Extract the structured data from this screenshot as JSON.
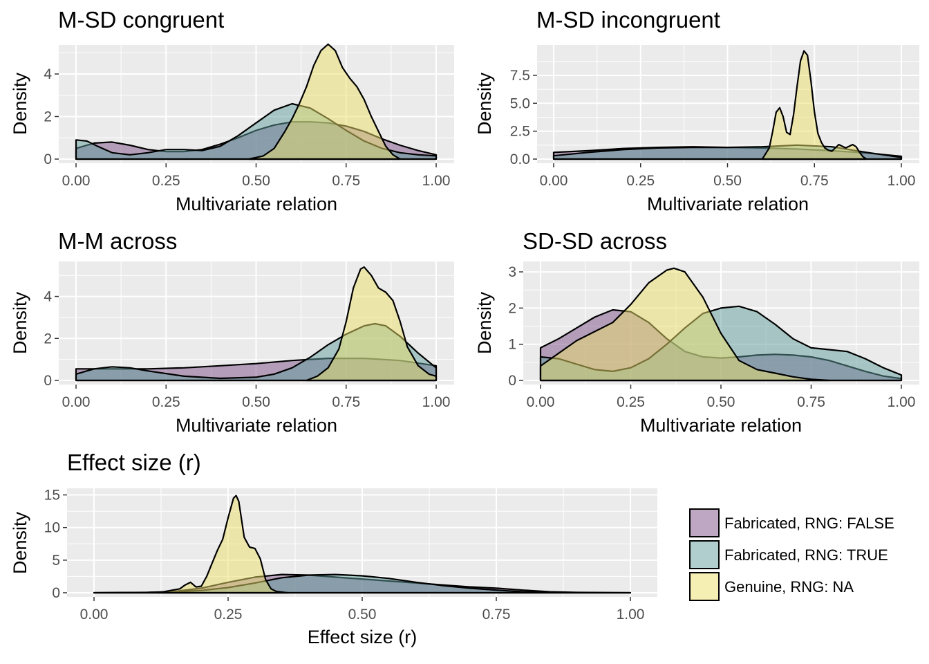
{
  "legend": {
    "placement": "bottom-right",
    "items": [
      {
        "label": "Fabricated, RNG: FALSE",
        "color": "#7b4f86"
      },
      {
        "label": "Fabricated, RNG: TRUE",
        "color": "#5f9e9c"
      },
      {
        "label": "Genuine, RNG: NA",
        "color": "#ece06a"
      }
    ]
  },
  "chart_data": [
    {
      "type": "area",
      "title": "M-SD congruent",
      "xlabel": "Multivariate relation",
      "ylabel": "Density",
      "xlim": [
        0,
        1
      ],
      "ylim": [
        0,
        5.3
      ],
      "xticks": [
        0,
        0.25,
        0.5,
        0.75,
        1
      ],
      "xtick_labels": [
        "0.00",
        "0.25",
        "0.50",
        "0.75",
        "1.00"
      ],
      "yticks": [
        0,
        2,
        4
      ],
      "ytick_labels": [
        "0",
        "2",
        "4"
      ],
      "series": [
        {
          "name": "Fabricated, RNG: FALSE",
          "x": [
            0,
            0.05,
            0.1,
            0.15,
            0.2,
            0.25,
            0.3,
            0.35,
            0.4,
            0.45,
            0.5,
            0.55,
            0.6,
            0.65,
            0.7,
            0.75,
            0.8,
            0.85,
            0.9,
            0.95,
            1.0
          ],
          "y": [
            0.5,
            0.75,
            0.8,
            0.65,
            0.45,
            0.35,
            0.35,
            0.45,
            0.7,
            1.0,
            1.35,
            1.6,
            1.75,
            1.75,
            1.7,
            1.55,
            1.3,
            0.95,
            0.65,
            0.4,
            0.2
          ]
        },
        {
          "name": "Fabricated, RNG: TRUE",
          "x": [
            0,
            0.03,
            0.06,
            0.1,
            0.15,
            0.2,
            0.25,
            0.3,
            0.35,
            0.4,
            0.45,
            0.5,
            0.55,
            0.6,
            0.65,
            0.7,
            0.75,
            0.8,
            0.85,
            0.9,
            0.95,
            1.0
          ],
          "y": [
            0.9,
            0.85,
            0.6,
            0.3,
            0.2,
            0.3,
            0.45,
            0.45,
            0.4,
            0.6,
            1.1,
            1.7,
            2.3,
            2.6,
            2.4,
            1.9,
            1.35,
            0.85,
            0.5,
            0.3,
            0.2,
            0.15
          ]
        },
        {
          "name": "Genuine, RNG: NA",
          "x": [
            0.48,
            0.52,
            0.55,
            0.58,
            0.6,
            0.62,
            0.64,
            0.66,
            0.68,
            0.7,
            0.72,
            0.74,
            0.76,
            0.78,
            0.8,
            0.82,
            0.84,
            0.86,
            0.88,
            0.9
          ],
          "y": [
            0,
            0.15,
            0.5,
            1.3,
            1.9,
            2.6,
            3.4,
            4.4,
            5.1,
            5.4,
            5.1,
            4.3,
            3.8,
            3.4,
            2.8,
            2.0,
            1.3,
            0.6,
            0.2,
            0
          ]
        }
      ]
    },
    {
      "type": "area",
      "title": "M-SD incongruent",
      "xlabel": "Multivariate relation",
      "ylabel": "Density",
      "xlim": [
        0,
        1
      ],
      "ylim": [
        0,
        10.1
      ],
      "xticks": [
        0,
        0.25,
        0.5,
        0.75,
        1
      ],
      "xtick_labels": [
        "0.00",
        "0.25",
        "0.50",
        "0.75",
        "1.00"
      ],
      "yticks": [
        0,
        2.5,
        5,
        7.5
      ],
      "ytick_labels": [
        "0.0",
        "2.5",
        "5.0",
        "7.5"
      ],
      "series": [
        {
          "name": "Fabricated, RNG: FALSE",
          "x": [
            0,
            0.1,
            0.2,
            0.3,
            0.4,
            0.5,
            0.6,
            0.7,
            0.8,
            0.9,
            1.0
          ],
          "y": [
            0.6,
            0.75,
            0.95,
            1.05,
            1.1,
            1.05,
            1.0,
            0.9,
            0.75,
            0.55,
            0.25
          ]
        },
        {
          "name": "Fabricated, RNG: TRUE",
          "x": [
            0,
            0.1,
            0.2,
            0.3,
            0.4,
            0.5,
            0.6,
            0.7,
            0.8,
            0.9,
            1.0
          ],
          "y": [
            0.3,
            0.6,
            0.85,
            1.0,
            1.05,
            1.05,
            1.1,
            1.25,
            1.1,
            0.6,
            0.15
          ]
        },
        {
          "name": "Genuine, RNG: NA",
          "x": [
            0.6,
            0.62,
            0.63,
            0.64,
            0.65,
            0.66,
            0.67,
            0.68,
            0.69,
            0.7,
            0.71,
            0.72,
            0.73,
            0.74,
            0.75,
            0.76,
            0.77,
            0.78,
            0.79,
            0.8,
            0.82,
            0.84,
            0.86,
            0.87,
            0.88,
            0.89,
            0.9
          ],
          "y": [
            0,
            1.0,
            2.5,
            4.2,
            4.6,
            3.8,
            2.4,
            2.2,
            4.0,
            6.5,
            8.8,
            9.7,
            9.3,
            7.0,
            4.2,
            2.3,
            1.5,
            1.0,
            0.8,
            0.7,
            1.3,
            1.0,
            1.3,
            1.1,
            0.6,
            0.2,
            0
          ]
        }
      ]
    },
    {
      "type": "area",
      "title": "M-M across",
      "xlabel": "Multivariate relation",
      "ylabel": "Density",
      "xlim": [
        0,
        1
      ],
      "ylim": [
        0,
        5.6
      ],
      "xticks": [
        0,
        0.25,
        0.5,
        0.75,
        1
      ],
      "xtick_labels": [
        "0.00",
        "0.25",
        "0.50",
        "0.75",
        "1.00"
      ],
      "yticks": [
        0,
        2,
        4
      ],
      "ytick_labels": [
        "0",
        "2",
        "4"
      ],
      "series": [
        {
          "name": "Fabricated, RNG: FALSE",
          "x": [
            0,
            0.1,
            0.2,
            0.3,
            0.4,
            0.5,
            0.6,
            0.7,
            0.8,
            0.9,
            1.0
          ],
          "y": [
            0.55,
            0.55,
            0.55,
            0.6,
            0.7,
            0.8,
            0.95,
            1.05,
            1.05,
            0.95,
            0.7
          ]
        },
        {
          "name": "Fabricated, RNG: TRUE",
          "x": [
            0,
            0.05,
            0.1,
            0.15,
            0.2,
            0.3,
            0.4,
            0.5,
            0.55,
            0.6,
            0.65,
            0.7,
            0.75,
            0.8,
            0.83,
            0.86,
            0.9,
            0.95,
            1.0
          ],
          "y": [
            0.3,
            0.55,
            0.65,
            0.6,
            0.45,
            0.2,
            0.1,
            0.15,
            0.3,
            0.6,
            1.1,
            1.7,
            2.2,
            2.6,
            2.7,
            2.6,
            2.1,
            1.3,
            0.6
          ]
        },
        {
          "name": "Genuine, RNG: NA",
          "x": [
            0.64,
            0.67,
            0.7,
            0.73,
            0.75,
            0.77,
            0.79,
            0.8,
            0.82,
            0.84,
            0.86,
            0.88,
            0.9,
            0.92,
            0.95,
            0.98,
            1.0
          ],
          "y": [
            0,
            0.2,
            0.6,
            1.5,
            2.8,
            4.4,
            5.3,
            5.4,
            5.0,
            4.4,
            4.2,
            3.8,
            2.8,
            1.6,
            0.7,
            0.3,
            0.2
          ]
        }
      ]
    },
    {
      "type": "area",
      "title": "SD-SD across",
      "xlabel": "Multivariate relation",
      "ylabel": "Density",
      "xlim": [
        0,
        1
      ],
      "ylim": [
        0,
        3.25
      ],
      "xticks": [
        0,
        0.25,
        0.5,
        0.75,
        1
      ],
      "xtick_labels": [
        "0.00",
        "0.25",
        "0.50",
        "0.75",
        "1.00"
      ],
      "yticks": [
        0,
        1,
        2,
        3
      ],
      "ytick_labels": [
        "0",
        "1",
        "2",
        "3"
      ],
      "series": [
        {
          "name": "Fabricated, RNG: FALSE",
          "x": [
            0,
            0.05,
            0.1,
            0.15,
            0.2,
            0.25,
            0.3,
            0.35,
            0.4,
            0.45,
            0.5,
            0.55,
            0.6,
            0.65,
            0.7,
            0.75,
            0.8,
            0.85,
            0.9,
            0.95,
            1.0
          ],
          "y": [
            0.9,
            1.15,
            1.45,
            1.75,
            1.95,
            1.9,
            1.6,
            1.15,
            0.8,
            0.65,
            0.62,
            0.65,
            0.7,
            0.72,
            0.7,
            0.65,
            0.55,
            0.4,
            0.25,
            0.12,
            0.05
          ]
        },
        {
          "name": "Fabricated, RNG: TRUE",
          "x": [
            0,
            0.05,
            0.1,
            0.15,
            0.2,
            0.25,
            0.3,
            0.35,
            0.4,
            0.45,
            0.5,
            0.55,
            0.6,
            0.65,
            0.7,
            0.75,
            0.8,
            0.85,
            0.9,
            0.95,
            1.0
          ],
          "y": [
            0.65,
            0.6,
            0.45,
            0.3,
            0.25,
            0.35,
            0.6,
            1.0,
            1.45,
            1.85,
            2.0,
            2.05,
            1.9,
            1.55,
            1.15,
            0.9,
            0.85,
            0.8,
            0.6,
            0.35,
            0.15
          ]
        },
        {
          "name": "Genuine, RNG: NA",
          "x": [
            0,
            0.05,
            0.1,
            0.15,
            0.2,
            0.25,
            0.3,
            0.35,
            0.37,
            0.4,
            0.45,
            0.5,
            0.55,
            0.6,
            0.65,
            0.7,
            0.75,
            0.8
          ],
          "y": [
            0.4,
            0.75,
            1.1,
            1.35,
            1.6,
            2.1,
            2.7,
            3.05,
            3.1,
            3.0,
            2.3,
            1.3,
            0.55,
            0.3,
            0.2,
            0.1,
            0.03,
            0
          ]
        }
      ]
    },
    {
      "type": "area",
      "title": "Effect size (r)",
      "xlabel": "Effect size (r)",
      "ylabel": "Density",
      "xlim": [
        0,
        1
      ],
      "ylim": [
        0,
        15.8
      ],
      "xticks": [
        0,
        0.25,
        0.5,
        0.75,
        1
      ],
      "xtick_labels": [
        "0.00",
        "0.25",
        "0.50",
        "0.75",
        "1.00"
      ],
      "yticks": [
        0,
        5,
        10,
        15
      ],
      "ytick_labels": [
        "0",
        "5",
        "10",
        "15"
      ],
      "series": [
        {
          "name": "Fabricated, RNG: FALSE",
          "x": [
            0,
            0.1,
            0.15,
            0.2,
            0.25,
            0.3,
            0.35,
            0.4,
            0.45,
            0.5,
            0.55,
            0.6,
            0.65,
            0.7,
            0.75,
            0.8,
            0.85,
            0.9,
            1.0
          ],
          "y": [
            0,
            0.05,
            0.2,
            0.7,
            1.6,
            2.4,
            2.8,
            2.7,
            2.4,
            2.1,
            1.8,
            1.5,
            1.2,
            0.9,
            0.7,
            0.4,
            0.15,
            0.05,
            0
          ]
        },
        {
          "name": "Fabricated, RNG: TRUE",
          "x": [
            0,
            0.1,
            0.15,
            0.2,
            0.25,
            0.3,
            0.35,
            0.4,
            0.45,
            0.5,
            0.55,
            0.6,
            0.65,
            0.7,
            0.75,
            0.8,
            0.85,
            0.9,
            1.0
          ],
          "y": [
            0,
            0.05,
            0.15,
            0.35,
            0.8,
            1.5,
            2.3,
            2.7,
            2.8,
            2.6,
            2.2,
            1.6,
            1.1,
            0.7,
            0.4,
            0.15,
            0.05,
            0.02,
            0
          ]
        },
        {
          "name": "Genuine, RNG: NA",
          "x": [
            0.12,
            0.16,
            0.17,
            0.18,
            0.19,
            0.2,
            0.21,
            0.22,
            0.23,
            0.24,
            0.25,
            0.26,
            0.265,
            0.27,
            0.28,
            0.29,
            0.3,
            0.31,
            0.32,
            0.33,
            0.34,
            0.36
          ],
          "y": [
            0,
            0.6,
            1.2,
            1.6,
            0.9,
            1.0,
            2.5,
            4.5,
            6.5,
            8.2,
            11.5,
            14.5,
            14.9,
            14.0,
            8.5,
            7.0,
            6.8,
            5.2,
            2.0,
            0.6,
            0.2,
            0
          ]
        }
      ]
    }
  ]
}
